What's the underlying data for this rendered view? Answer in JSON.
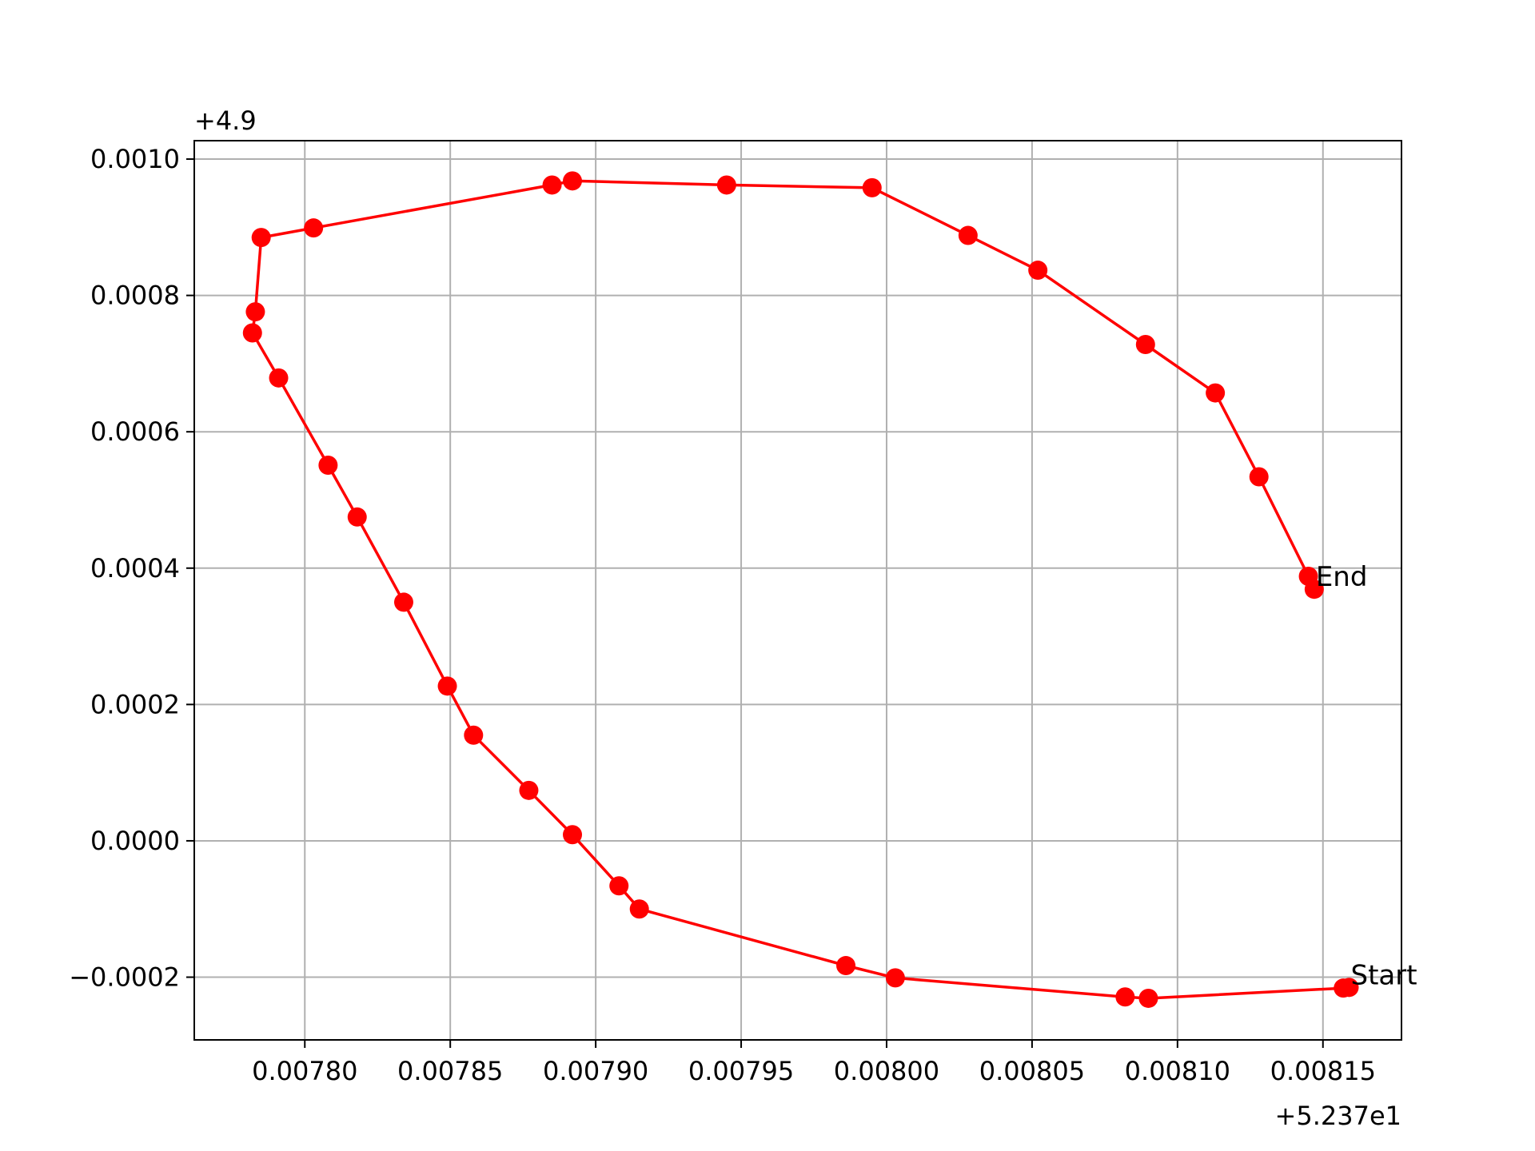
{
  "chart_data": {
    "type": "line",
    "title": "",
    "xlabel": "",
    "ylabel": "",
    "grid": true,
    "x_offset_label": "+5.237e1",
    "y_offset_label": "+4.9",
    "x_offset": 52.37,
    "y_offset": 4.9,
    "xlim": [
      0.007762,
      0.008177
    ],
    "ylim": [
      -0.000292,
      0.001027
    ],
    "x_ticks": [
      0.0078,
      0.00785,
      0.0079,
      0.00795,
      0.008,
      0.00805,
      0.0081,
      0.00815
    ],
    "x_tick_labels": [
      "0.00780",
      "0.00785",
      "0.00790",
      "0.00795",
      "0.00800",
      "0.00805",
      "0.00810",
      "0.00815"
    ],
    "y_ticks": [
      -0.0002,
      0.0,
      0.0002,
      0.0004,
      0.0006,
      0.0008,
      0.001
    ],
    "y_tick_labels": [
      "−0.0002",
      "0.0000",
      "0.0002",
      "0.0004",
      "0.0006",
      "0.0008",
      "0.0010"
    ],
    "series": [
      {
        "color": "#ff0000",
        "marker": "circle",
        "points": [
          {
            "x": 0.008159,
            "y": -0.000215
          },
          {
            "x": 0.008157,
            "y": -0.000216
          },
          {
            "x": 0.00809,
            "y": -0.000231
          },
          {
            "x": 0.008082,
            "y": -0.000229
          },
          {
            "x": 0.008003,
            "y": -0.000201
          },
          {
            "x": 0.007986,
            "y": -0.000183
          },
          {
            "x": 0.007915,
            "y": -0.0001
          },
          {
            "x": 0.007908,
            "y": -6.6e-05
          },
          {
            "x": 0.007892,
            "y": 9e-06
          },
          {
            "x": 0.007877,
            "y": 7.4e-05
          },
          {
            "x": 0.007858,
            "y": 0.000155
          },
          {
            "x": 0.007849,
            "y": 0.000227
          },
          {
            "x": 0.007834,
            "y": 0.00035
          },
          {
            "x": 0.007818,
            "y": 0.000475
          },
          {
            "x": 0.007808,
            "y": 0.000551
          },
          {
            "x": 0.007791,
            "y": 0.000679
          },
          {
            "x": 0.007782,
            "y": 0.000745
          },
          {
            "x": 0.007783,
            "y": 0.000776
          },
          {
            "x": 0.007785,
            "y": 0.000885
          },
          {
            "x": 0.007803,
            "y": 0.000899
          },
          {
            "x": 0.007885,
            "y": 0.000962
          },
          {
            "x": 0.007892,
            "y": 0.000968
          },
          {
            "x": 0.007945,
            "y": 0.000962
          },
          {
            "x": 0.007995,
            "y": 0.000958
          },
          {
            "x": 0.008028,
            "y": 0.000888
          },
          {
            "x": 0.008052,
            "y": 0.000837
          },
          {
            "x": 0.008089,
            "y": 0.000728
          },
          {
            "x": 0.008113,
            "y": 0.000657
          },
          {
            "x": 0.008128,
            "y": 0.000534
          },
          {
            "x": 0.008145,
            "y": 0.000388
          },
          {
            "x": 0.008147,
            "y": 0.000369
          }
        ]
      }
    ],
    "annotations": [
      {
        "text": "Start",
        "x": 0.008159,
        "y": -0.000215
      },
      {
        "text": "End",
        "x": 0.008147,
        "y": 0.000369
      }
    ]
  }
}
